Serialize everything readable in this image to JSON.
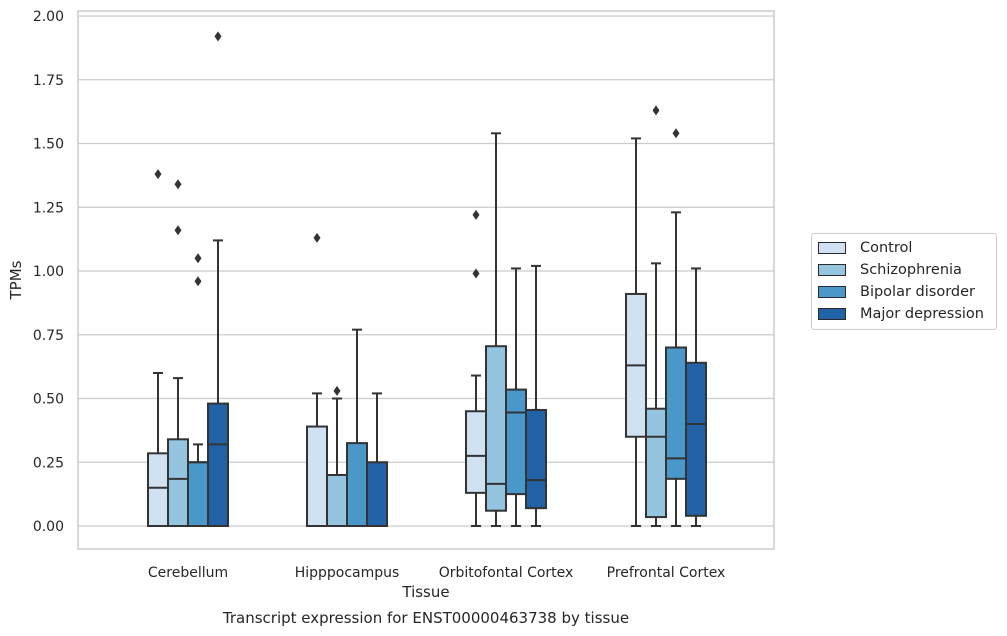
{
  "chart_data": {
    "type": "box",
    "title": "",
    "caption": "Transcript expression for ENST00000463738 by tissue",
    "xlabel": "Tissue",
    "ylabel": "TPMs",
    "ylim": [
      -0.09,
      2.02
    ],
    "yticks": [
      "0.00",
      "0.25",
      "0.50",
      "0.75",
      "1.00",
      "1.25",
      "1.50",
      "1.75",
      "2.00"
    ],
    "grid": "horizontal",
    "legend_position": "right",
    "categories": [
      "Cerebellum",
      "Hipppocampus",
      "Orbitofontal Cortex",
      "Prefrontal Cortex"
    ],
    "series": [
      {
        "name": "Control",
        "color": "#d0e1f2",
        "boxes": [
          {
            "q1": 0.0,
            "median": 0.15,
            "q3": 0.285,
            "whislo": 0.0,
            "whishi": 0.6,
            "fliers": [
              1.38
            ]
          },
          {
            "q1": 0.0,
            "median": 0.0,
            "q3": 0.39,
            "whislo": 0.0,
            "whishi": 0.52,
            "fliers": [
              1.13
            ]
          },
          {
            "q1": 0.13,
            "median": 0.275,
            "q3": 0.45,
            "whislo": 0.0,
            "whishi": 0.59,
            "fliers": [
              0.99,
              1.22
            ]
          },
          {
            "q1": 0.35,
            "median": 0.63,
            "q3": 0.91,
            "whislo": 0.0,
            "whishi": 1.52,
            "fliers": []
          }
        ]
      },
      {
        "name": "Schizophrenia",
        "color": "#94c4df",
        "boxes": [
          {
            "q1": 0.0,
            "median": 0.185,
            "q3": 0.34,
            "whislo": 0.0,
            "whishi": 0.58,
            "fliers": [
              1.16,
              1.34
            ]
          },
          {
            "q1": 0.0,
            "median": 0.0,
            "q3": 0.2,
            "whislo": 0.0,
            "whishi": 0.5,
            "fliers": [
              0.53
            ]
          },
          {
            "q1": 0.06,
            "median": 0.165,
            "q3": 0.705,
            "whislo": 0.0,
            "whishi": 1.54,
            "fliers": []
          },
          {
            "q1": 0.035,
            "median": 0.35,
            "q3": 0.46,
            "whislo": 0.0,
            "whishi": 1.03,
            "fliers": [
              1.63
            ]
          }
        ]
      },
      {
        "name": "Bipolar disorder",
        "color": "#4a98c9",
        "boxes": [
          {
            "q1": 0.0,
            "median": 0.25,
            "q3": 0.25,
            "whislo": 0.0,
            "whishi": 0.32,
            "fliers": [
              0.96,
              1.05
            ]
          },
          {
            "q1": 0.0,
            "median": 0.0,
            "q3": 0.325,
            "whislo": 0.0,
            "whishi": 0.77,
            "fliers": []
          },
          {
            "q1": 0.125,
            "median": 0.445,
            "q3": 0.535,
            "whislo": 0.0,
            "whishi": 1.01,
            "fliers": []
          },
          {
            "q1": 0.185,
            "median": 0.265,
            "q3": 0.7,
            "whislo": 0.0,
            "whishi": 1.23,
            "fliers": [
              1.54
            ]
          }
        ]
      },
      {
        "name": "Major depression",
        "color": "#2163a6",
        "boxes": [
          {
            "q1": 0.0,
            "median": 0.32,
            "q3": 0.48,
            "whislo": 0.0,
            "whishi": 1.12,
            "fliers": [
              1.92
            ]
          },
          {
            "q1": 0.0,
            "median": 0.0,
            "q3": 0.25,
            "whislo": 0.0,
            "whishi": 0.52,
            "fliers": []
          },
          {
            "q1": 0.07,
            "median": 0.18,
            "q3": 0.455,
            "whislo": 0.0,
            "whishi": 1.02,
            "fliers": []
          },
          {
            "q1": 0.04,
            "median": 0.4,
            "q3": 0.64,
            "whislo": 0.0,
            "whishi": 1.01,
            "fliers": []
          }
        ]
      }
    ]
  }
}
